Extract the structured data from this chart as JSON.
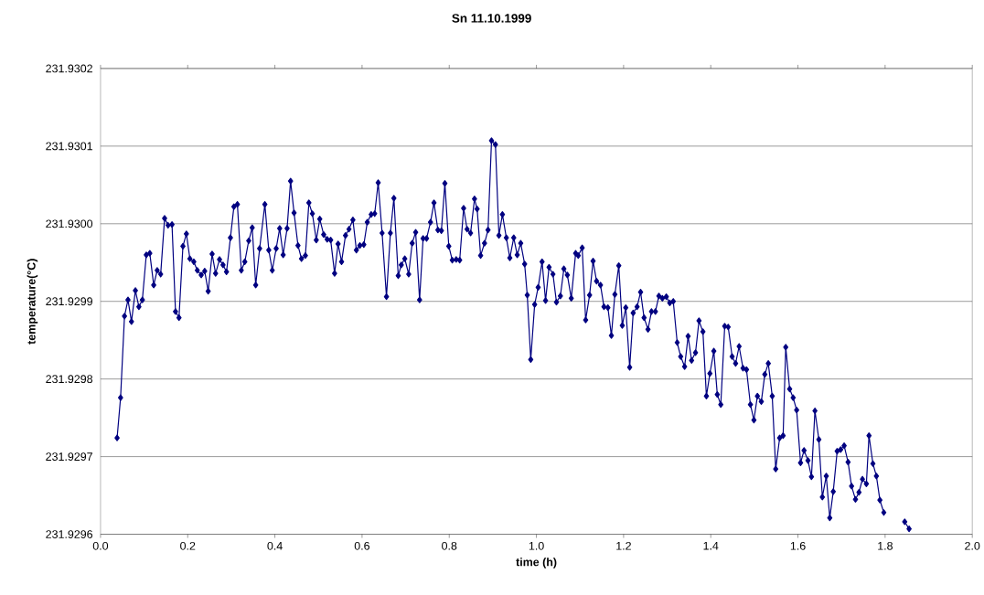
{
  "chart_data": {
    "type": "line",
    "title": "Sn 11.10.1999",
    "xlabel": "time (h)",
    "ylabel": "temperature(°C)",
    "x": [
      0.038,
      0.046,
      0.055,
      0.063,
      0.071,
      0.08,
      0.088,
      0.096,
      0.105,
      0.113,
      0.122,
      0.13,
      0.138,
      0.147,
      0.155,
      0.164,
      0.172,
      0.18,
      0.189,
      0.197,
      0.205,
      0.214,
      0.222,
      0.231,
      0.239,
      0.247,
      0.256,
      0.264,
      0.273,
      0.281,
      0.289,
      0.298,
      0.306,
      0.314,
      0.323,
      0.331,
      0.34,
      0.348,
      0.356,
      0.365,
      0.377,
      0.386,
      0.394,
      0.403,
      0.411,
      0.419,
      0.428,
      0.436,
      0.444,
      0.453,
      0.461,
      0.47,
      0.478,
      0.486,
      0.495,
      0.503,
      0.512,
      0.52,
      0.528,
      0.537,
      0.545,
      0.553,
      0.562,
      0.57,
      0.579,
      0.587,
      0.595,
      0.604,
      0.612,
      0.621,
      0.629,
      0.637,
      0.646,
      0.656,
      0.665,
      0.673,
      0.683,
      0.69,
      0.698,
      0.707,
      0.715,
      0.723,
      0.732,
      0.74,
      0.748,
      0.757,
      0.765,
      0.774,
      0.782,
      0.79,
      0.799,
      0.807,
      0.816,
      0.824,
      0.833,
      0.841,
      0.849,
      0.858,
      0.864,
      0.872,
      0.881,
      0.889,
      0.897,
      0.906,
      0.914,
      0.922,
      0.931,
      0.939,
      0.948,
      0.956,
      0.964,
      0.973,
      0.979,
      0.987,
      0.996,
      1.004,
      1.013,
      1.021,
      1.029,
      1.038,
      1.046,
      1.055,
      1.063,
      1.071,
      1.08,
      1.09,
      1.096,
      1.105,
      1.113,
      1.122,
      1.13,
      1.138,
      1.147,
      1.155,
      1.164,
      1.172,
      1.18,
      1.189,
      1.197,
      1.205,
      1.214,
      1.222,
      1.231,
      1.239,
      1.247,
      1.256,
      1.264,
      1.273,
      1.281,
      1.289,
      1.298,
      1.306,
      1.314,
      1.323,
      1.331,
      1.34,
      1.348,
      1.356,
      1.365,
      1.373,
      1.382,
      1.39,
      1.398,
      1.407,
      1.415,
      1.423,
      1.432,
      1.44,
      1.449,
      1.457,
      1.465,
      1.474,
      1.482,
      1.491,
      1.499,
      1.507,
      1.516,
      1.524,
      1.532,
      1.541,
      1.549,
      1.558,
      1.566,
      1.572,
      1.581,
      1.589,
      1.597,
      1.606,
      1.614,
      1.623,
      1.631,
      1.639,
      1.648,
      1.656,
      1.665,
      1.673,
      1.681,
      1.69,
      1.698,
      1.706,
      1.715,
      1.723,
      1.732,
      1.74,
      1.748,
      1.757,
      1.763,
      1.772,
      1.78,
      1.788,
      1.797,
      1.82,
      1.845,
      1.855
    ],
    "values": [
      231.929724,
      231.929776,
      231.929881,
      231.929902,
      231.929874,
      231.929914,
      231.929893,
      231.929902,
      231.92996,
      231.929962,
      231.929921,
      231.92994,
      231.929935,
      231.930007,
      231.929998,
      231.929999,
      231.929887,
      231.929879,
      231.929971,
      231.929987,
      231.929955,
      231.929951,
      231.92994,
      231.929934,
      231.929939,
      231.929913,
      231.929961,
      231.929936,
      231.929954,
      231.929947,
      231.929938,
      231.929982,
      231.930022,
      231.930025,
      231.92994,
      231.929951,
      231.929978,
      231.929995,
      231.929921,
      231.929968,
      231.930025,
      231.929966,
      231.92994,
      231.929968,
      231.929994,
      231.92996,
      231.929994,
      231.930055,
      231.930014,
      231.929972,
      231.929955,
      231.929959,
      231.930027,
      231.930013,
      231.929979,
      231.930006,
      231.929986,
      231.92998,
      231.929979,
      231.929936,
      231.929974,
      231.929951,
      231.929985,
      231.929993,
      231.930005,
      231.929966,
      231.929972,
      231.929973,
      231.930002,
      231.930012,
      231.930013,
      231.930053,
      231.929988,
      231.929906,
      231.929988,
      231.930033,
      231.929933,
      231.929947,
      231.929955,
      231.929935,
      231.929975,
      231.929989,
      231.929902,
      231.929981,
      231.929981,
      231.930002,
      231.930027,
      231.929992,
      231.929991,
      231.930052,
      231.929971,
      231.929953,
      231.929954,
      231.929953,
      231.93002,
      231.929993,
      231.929988,
      231.930032,
      231.930019,
      231.929959,
      231.929975,
      231.929992,
      231.930107,
      231.930102,
      231.929985,
      231.930012,
      231.929982,
      231.929956,
      231.929982,
      231.92996,
      231.929975,
      231.929948,
      231.929908,
      231.929825,
      231.929896,
      231.929918,
      231.929951,
      231.929901,
      231.929944,
      231.929935,
      231.929899,
      231.929907,
      231.929942,
      231.929934,
      231.929904,
      231.929962,
      231.929959,
      231.929969,
      231.929876,
      231.929908,
      231.929952,
      231.929926,
      231.929921,
      231.929893,
      231.929892,
      231.929856,
      231.929909,
      231.929946,
      231.929869,
      231.929892,
      231.929815,
      231.929885,
      231.929893,
      231.929912,
      231.929879,
      231.929864,
      231.929887,
      231.929887,
      231.929907,
      231.929904,
      231.929906,
      231.929898,
      231.9299,
      231.929847,
      231.929829,
      231.929816,
      231.929855,
      231.929824,
      231.929834,
      231.929875,
      231.929861,
      231.929778,
      231.929807,
      231.929836,
      231.92978,
      231.929767,
      231.929868,
      231.929867,
      231.929829,
      231.92982,
      231.929842,
      231.929814,
      231.929812,
      231.929767,
      231.929747,
      231.929778,
      231.929771,
      231.929806,
      231.92982,
      231.929778,
      231.929684,
      231.929724,
      231.929727,
      231.929841,
      231.929787,
      231.929776,
      231.92976,
      231.929692,
      231.929708,
      231.929695,
      231.929674,
      231.929759,
      231.929722,
      231.929648,
      231.929675,
      231.929621,
      231.929655,
      231.929707,
      231.929709,
      231.929714,
      231.929693,
      231.929662,
      231.929645,
      231.929654,
      231.929671,
      231.929665,
      231.929727,
      231.929691,
      231.929675,
      231.929644,
      231.929628,
      null,
      231.929616,
      231.929607
    ],
    "color": "#000080",
    "marker": "diamond",
    "line_style": "solid",
    "grid": "y",
    "xlim": [
      0,
      2
    ],
    "ylim": [
      231.9296,
      231.9302
    ],
    "xticks": [
      {
        "value": 0,
        "label": "0.0"
      },
      0.2,
      0.4,
      0.6,
      0.8,
      {
        "value": 1,
        "label": "1.0"
      },
      1.2,
      1.4,
      1.6,
      1.8,
      {
        "value": 2,
        "label": "2.0"
      }
    ],
    "yticks": [
      231.9296,
      231.9297,
      231.9298,
      231.9299,
      {
        "value": 231.93,
        "label": "231.9300"
      },
      231.9301,
      231.9302
    ]
  }
}
